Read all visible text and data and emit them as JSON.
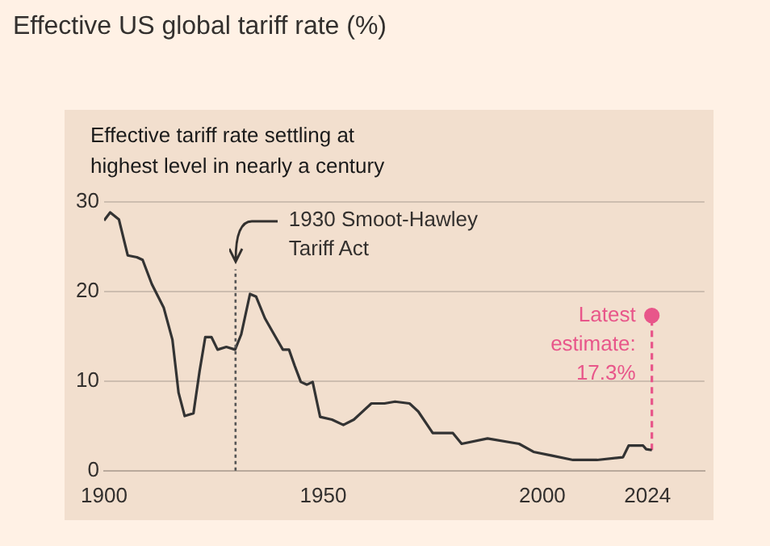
{
  "chart_data": {
    "type": "line",
    "title": "Effective US global tariff rate (%)",
    "subtitle": "Effective tariff rate settling at highest level in nearly a century",
    "xlim": [
      1900,
      2037
    ],
    "xticks": [
      1900,
      1950,
      2000,
      2024
    ],
    "ylim": [
      0,
      30
    ],
    "yticks": [
      0,
      10,
      20,
      30
    ],
    "grid": "y",
    "legend": false,
    "series": [
      {
        "color": "#333333",
        "marker": "none",
        "line_style": "solid",
        "x": [
          1900,
          1901.4,
          1903.4,
          1905.4,
          1907.5,
          1908.8,
          1910.9,
          1913.6,
          1915.6,
          1917,
          1918.4,
          1920.4,
          1921.8,
          1923.1,
          1924.5,
          1925.9,
          1927.9,
          1929.9,
          1931.3,
          1933.3,
          1934.7,
          1936.7,
          1938.8,
          1940.8,
          1942.2,
          1943.5,
          1944.9,
          1946.3,
          1947.6,
          1949.3,
          1952,
          1954.6,
          1957,
          1961,
          1964,
          1966.4,
          1969.7,
          1971.7,
          1975,
          1979.6,
          1981.6,
          1987.5,
          1994.7,
          1998,
          2002,
          2007,
          2012.5,
          2018.4,
          2019.7,
          2023,
          2023.7,
          2025
        ],
        "values": [
          27.9,
          28.8,
          28,
          24,
          23.8,
          23.5,
          20.8,
          18.2,
          14.6,
          8.7,
          6.1,
          6.4,
          11.1,
          14.9,
          14.9,
          13.5,
          13.8,
          13.5,
          15.2,
          19.7,
          19.4,
          17,
          15.2,
          13.5,
          13.5,
          11.7,
          9.9,
          9.6,
          9.9,
          6,
          5.7,
          5.1,
          5.7,
          7.5,
          7.5,
          7.7,
          7.5,
          6.6,
          4.2,
          4.2,
          3,
          3.6,
          3,
          2.1,
          1.7,
          1.2,
          1.2,
          1.5,
          2.8,
          2.8,
          2.4,
          2.3
        ]
      },
      {
        "color": "#e8568a",
        "marker": "circle",
        "line_style": "dashed",
        "x": [
          2025,
          2025
        ],
        "values": [
          2.3,
          17.3
        ]
      }
    ],
    "ref_lines": [
      {
        "axis": "x",
        "value": 1930,
        "label": "1930 Smoot-Hawley\nTariff Act",
        "color": "#555555",
        "line_style": "dotted"
      }
    ],
    "annotations": [
      {
        "text": "Latest\nestimate:\n17.3%",
        "x": 2025,
        "y": 17.3
      }
    ]
  }
}
